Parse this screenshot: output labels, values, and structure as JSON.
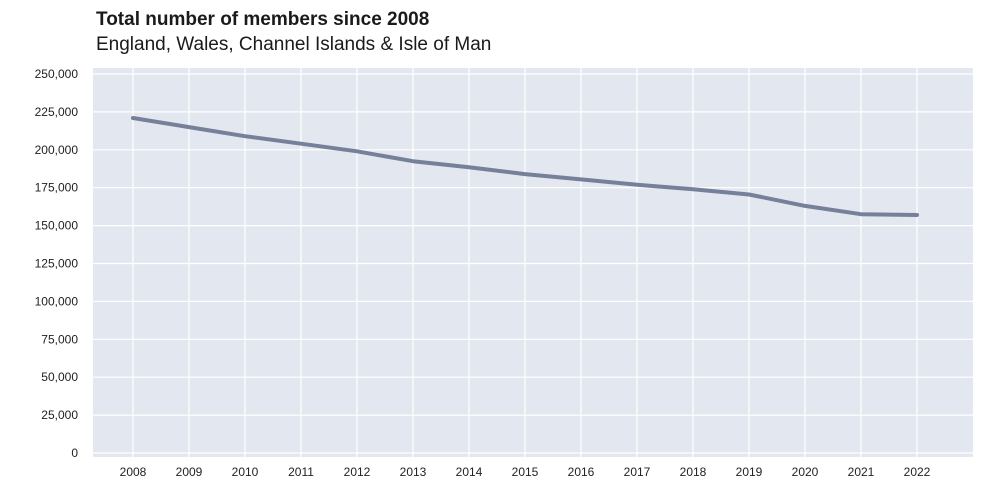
{
  "title": "Total number of members since 2008",
  "subtitle": "England, Wales, Channel Islands & Isle of Man",
  "colors": {
    "plot_background": "#e3e7ef",
    "gridline": "#ffffff",
    "line": "#77809a"
  },
  "chart_data": {
    "type": "line",
    "title": "Total number of members since 2008",
    "subtitle": "England, Wales, Channel Islands & Isle of Man",
    "xlabel": "",
    "ylabel": "",
    "x": [
      "2008",
      "2009",
      "2010",
      "2011",
      "2012",
      "2013",
      "2014",
      "2015",
      "2016",
      "2017",
      "2018",
      "2019",
      "2020",
      "2021",
      "2022"
    ],
    "series": [
      {
        "values": [
          221000,
          215000,
          209000,
          204000,
          199000,
          192500,
          188500,
          184000,
          180500,
          177000,
          174000,
          170500,
          163000,
          157500,
          157000
        ]
      }
    ],
    "ylim": [
      0,
      250000
    ],
    "y_ticks": [
      0,
      25000,
      50000,
      75000,
      100000,
      125000,
      150000,
      175000,
      200000,
      225000,
      250000
    ],
    "y_tick_labels": [
      "0",
      "25,000",
      "50,000",
      "75,000",
      "100,000",
      "125,000",
      "150,000",
      "175,000",
      "200,000",
      "225,000",
      "250,000"
    ],
    "grid": true,
    "legend": "none"
  }
}
